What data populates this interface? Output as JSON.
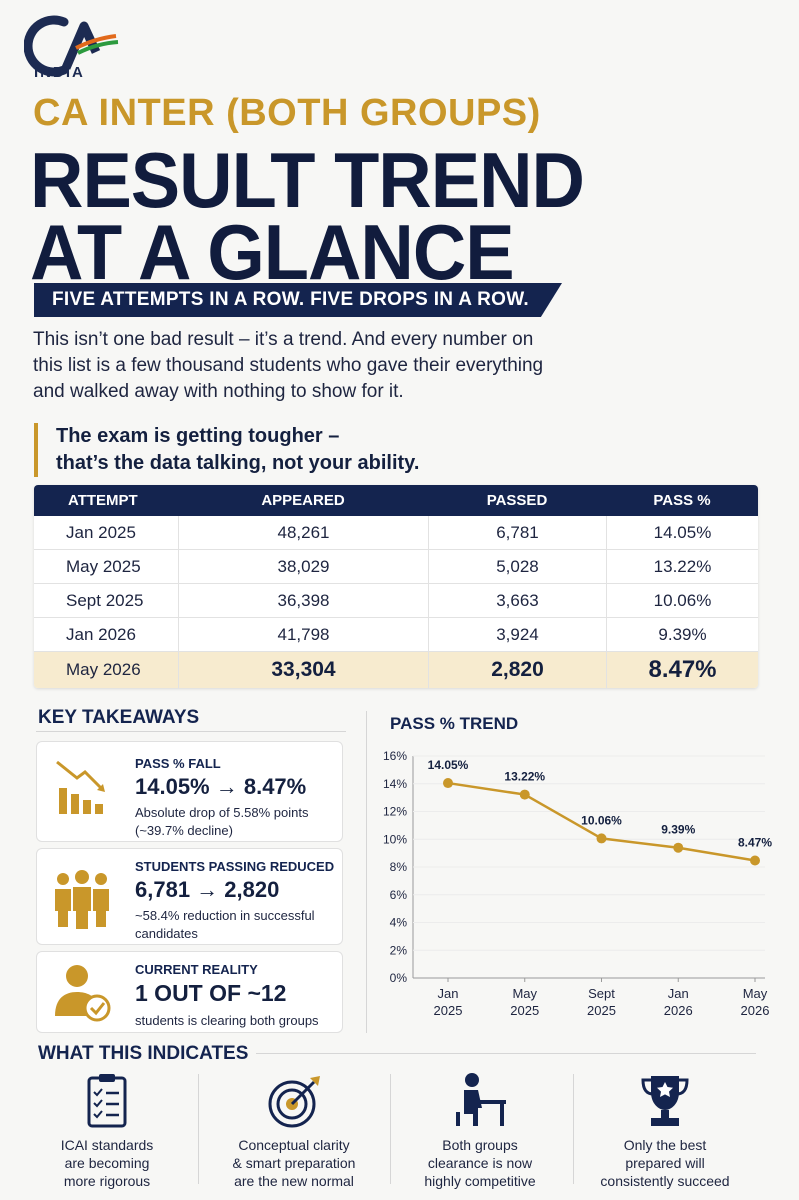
{
  "brand": {
    "logo_text": "INDIA",
    "navy": "#14244f",
    "gold": "#c9972a"
  },
  "header": {
    "subtitle": "CA INTER (BOTH GROUPS)",
    "title_line1": "RESULT TREND",
    "title_line2": "AT A GLANCE",
    "banner": "FIVE ATTEMPTS IN A ROW. FIVE DROPS IN A ROW."
  },
  "intro": "This isn’t one bad result – it’s a trend. And every number on this list is a few thousand students who gave their everything and walked away with nothing to show for it.",
  "quote": {
    "line1": "The exam is getting tougher –",
    "line2": "that’s the data talking, not your ability."
  },
  "table": {
    "headers": [
      "ATTEMPT",
      "APPEARED",
      "PASSED",
      "PASS %"
    ],
    "rows": [
      [
        "Jan 2025",
        "48,261",
        "6,781",
        "14.05%"
      ],
      [
        "May 2025",
        "38,029",
        "5,028",
        "13.22%"
      ],
      [
        "Sept 2025",
        "36,398",
        "3,663",
        "10.06%"
      ],
      [
        "Jan 2026",
        "41,798",
        "3,924",
        "9.39%"
      ],
      [
        "May 2026",
        "33,304",
        "2,820",
        "8.47%"
      ]
    ]
  },
  "takeaways": {
    "title": "KEY TAKEAWAYS",
    "cards": [
      {
        "icon": "falling-bar-chart-icon",
        "title": "PASS % FALL",
        "big": "14.05% → 8.47%",
        "desc": "Absolute drop of 5.58% points (~39.7% decline)"
      },
      {
        "icon": "people-group-icon",
        "title": "STUDENTS PASSING REDUCED",
        "big": "6,781 → 2,820",
        "desc": "~58.4% reduction in successful candidates"
      },
      {
        "icon": "user-check-icon",
        "title": "CURRENT REALITY",
        "big": "1 OUT OF ~12",
        "desc": "students is clearing both groups"
      }
    ]
  },
  "chart_data": {
    "type": "line",
    "title": "PASS % TREND",
    "categories": [
      [
        "Jan",
        "2025"
      ],
      [
        "May",
        "2025"
      ],
      [
        "Sept",
        "2025"
      ],
      [
        "Jan",
        "2026"
      ],
      [
        "May",
        "2026"
      ]
    ],
    "values": [
      14.05,
      13.22,
      10.06,
      9.39,
      8.47
    ],
    "labels": [
      "14.05%",
      "13.22%",
      "10.06%",
      "9.39%",
      "8.47%"
    ],
    "ylim": [
      0,
      16
    ],
    "yticks": [
      "0%",
      "2%",
      "4%",
      "6%",
      "8%",
      "10%",
      "12%",
      "14%",
      "16%"
    ],
    "grid": true,
    "line_color": "#c9972a"
  },
  "indicates": {
    "title": "WHAT THIS INDICATES",
    "items": [
      {
        "icon": "clipboard-checklist-icon",
        "text": [
          "ICAI standards",
          "are becoming",
          "more rigorous"
        ]
      },
      {
        "icon": "target-arrow-icon",
        "text": [
          "Conceptual clarity",
          "& smart preparation",
          "are the new normal"
        ]
      },
      {
        "icon": "student-desk-icon",
        "text": [
          "Both groups",
          "clearance is now",
          "highly competitive"
        ]
      },
      {
        "icon": "trophy-icon",
        "text": [
          "Only the best",
          "prepared will",
          "consistently succeed"
        ]
      }
    ]
  }
}
